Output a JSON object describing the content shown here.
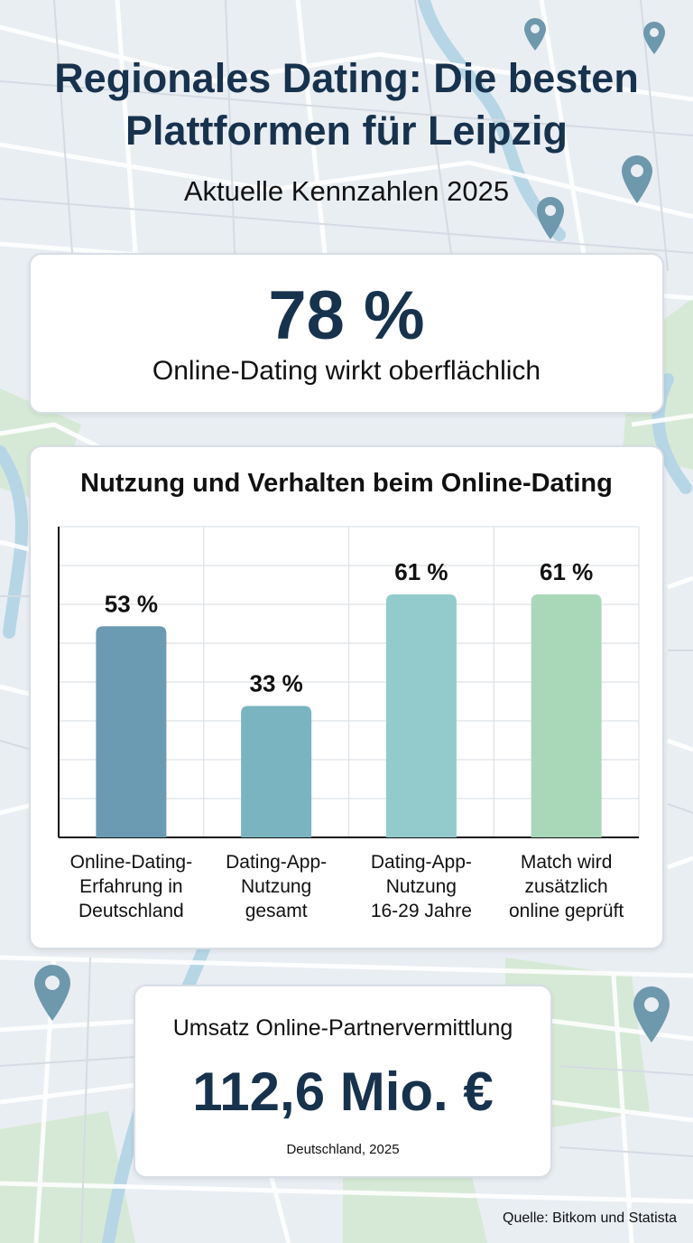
{
  "title": "Regionales Dating: Die besten Plattformen für Leipzig",
  "subtitle": "Aktuelle Kennzahlen 2025",
  "highlight": {
    "value": "78 %",
    "label": "Online-Dating wirkt oberflächlich"
  },
  "revenue": {
    "label": "Umsatz Online-Partnervermittlung",
    "value": "112,6 Mio. €",
    "note": "Deutschland, 2025"
  },
  "source": "Quelle: Bitkom und Statista",
  "colors": {
    "title": "#17324d",
    "bar1": "#6b9ab3",
    "bar2": "#79b4c0",
    "bar3": "#93cbcc",
    "bar4": "#a8d8b8",
    "map_water": "#a9cfe0",
    "map_park": "#cfe6cf",
    "pin": "#6e98ac"
  },
  "chart_data": {
    "type": "bar",
    "title": "Nutzung und Verhalten beim Online-Dating",
    "categories": [
      [
        "Online-Dating-",
        "Erfahrung in",
        "Deutschland"
      ],
      [
        "Dating-App-",
        "Nutzung",
        "gesamt"
      ],
      [
        "Dating-App-",
        "Nutzung",
        "16-29 Jahre"
      ],
      [
        "Match wird",
        "zusätzlich",
        "online geprüft"
      ]
    ],
    "values": [
      53,
      33,
      61,
      61
    ],
    "value_labels": [
      "53 %",
      "33 %",
      "61 %",
      "61 %"
    ],
    "unit": "%",
    "ylim": [
      0,
      78
    ],
    "grid": true,
    "legend": "none"
  }
}
